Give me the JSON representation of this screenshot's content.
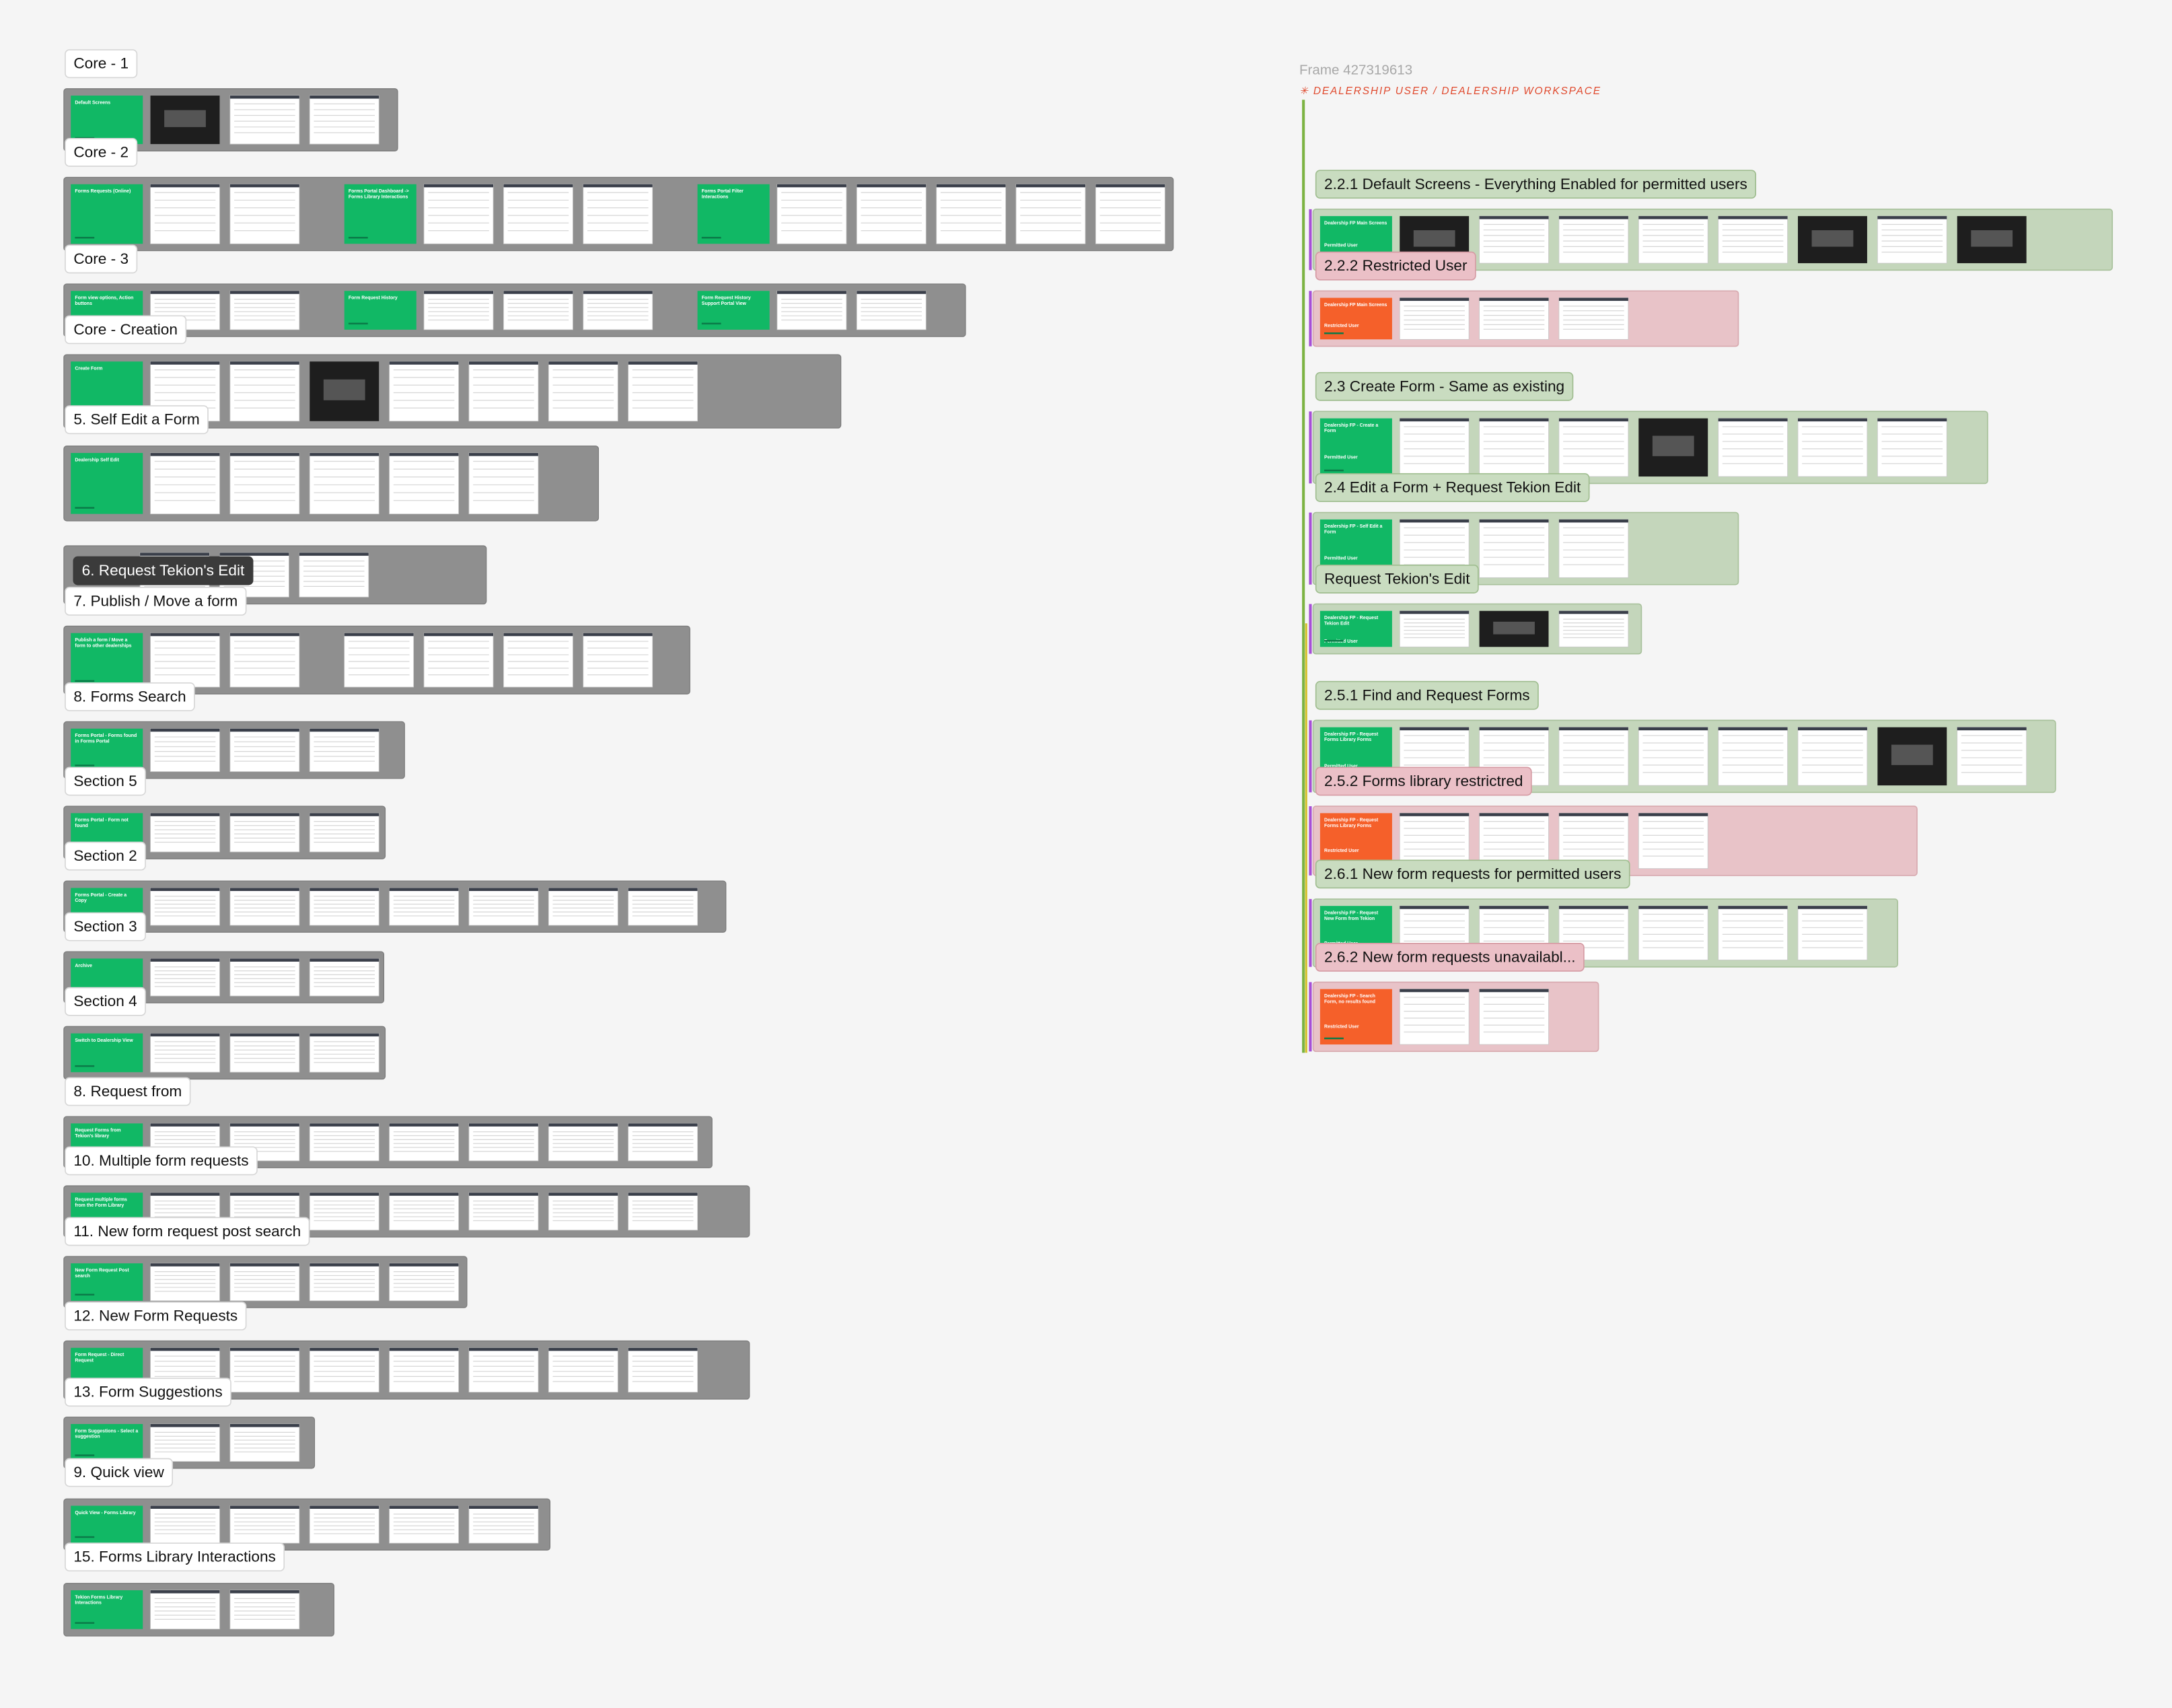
{
  "canvas": {
    "frame_label": "Frame 427319613",
    "frame_title": "✳ DEALERSHIP USER / DEALERSHIP WORKSPACE",
    "left_sections": [
      {
        "label": "Core - 1",
        "cover_titles": [
          "Default Screens"
        ]
      },
      {
        "label": "Core - 2",
        "cover_titles": [
          "Forms Requests (Online)",
          "Forms Portal Dashboard -> Forms Library Interactions",
          "Forms Portal Filter Interactions"
        ]
      },
      {
        "label": "Core - 3",
        "cover_titles": [
          "Form view options, Action buttons",
          "Form Request History",
          "Form Request History Support Portal View"
        ]
      },
      {
        "label": "Core - Creation",
        "cover_titles": [
          "Create Form"
        ]
      },
      {
        "label": "5. Self Edit a Form",
        "cover_titles": [
          "Dealership Self Edit"
        ]
      },
      {
        "label": "6. Request Tekion's Edit",
        "cover_titles": []
      },
      {
        "label": "7. Publish / Move a form",
        "cover_titles": [
          "Publish a form / Move a form to other dealerships"
        ]
      },
      {
        "label": "8. Forms Search",
        "cover_titles": [
          "Forms Portal - Forms found in Forms Portal"
        ]
      },
      {
        "label": "Section 5",
        "cover_titles": [
          "Forms Portal - Form not found"
        ]
      },
      {
        "label": "Section 2",
        "cover_titles": [
          "Forms Portal - Create a Copy"
        ]
      },
      {
        "label": "Section 3",
        "cover_titles": [
          "Archive"
        ]
      },
      {
        "label": "Section 4",
        "cover_titles": [
          "Switch to Dealership View"
        ]
      },
      {
        "label": "8. Request from",
        "cover_titles": [
          "Request Forms from Tekion's library"
        ]
      },
      {
        "label": "10. Multiple form requests",
        "cover_titles": [
          "Request multiple forms from the Form Library"
        ]
      },
      {
        "label": "11. New form request post search",
        "cover_titles": [
          "New Form Request Post search"
        ]
      },
      {
        "label": "12. New Form Requests",
        "cover_titles": [
          "Form Request - Direct Request"
        ]
      },
      {
        "label": "13. Form Suggestions",
        "cover_titles": [
          "Form Suggestions - Select a suggestion"
        ]
      },
      {
        "label": "9. Quick view",
        "cover_titles": [
          "Quick View - Forms Library"
        ]
      },
      {
        "label": "15. Forms Library Interactions",
        "cover_titles": [
          "Tekion Forms Library Interactions"
        ]
      }
    ],
    "right_sections": [
      {
        "label": "2.2.1 Default Screens - Everything Enabled for permitted users",
        "cover_title": "Dealership FP Main Screens",
        "cover_subtitle": "Permitted User"
      },
      {
        "label": "2.2.2 Restricted User",
        "cover_title": "Dealership FP Main Screens",
        "cover_subtitle": "Restricted User"
      },
      {
        "label": "2.3 Create Form - Same as existing",
        "cover_title": "Dealership FP - Create a Form",
        "cover_subtitle": "Permitted User"
      },
      {
        "label": "2.4 Edit a Form + Request Tekion Edit",
        "cover_title": "Dealership FP - Self Edit a Form",
        "cover_subtitle": "Permitted User"
      },
      {
        "label": "Request Tekion's Edit",
        "cover_title": "Dealership FP - Request Tekion Edit",
        "cover_subtitle": "Permitted User"
      },
      {
        "label": "2.5.1 Find and Request Forms",
        "cover_title": "Dealership FP - Request Forms Library Forms",
        "cover_subtitle": "Permitted User"
      },
      {
        "label": "2.5.2 Forms library restrictred",
        "cover_title": "Dealership FP - Request Forms Library Forms",
        "cover_subtitle": "Restricted User"
      },
      {
        "label": "2.6.1 New form requests for permitted users",
        "cover_title": "Dealership FP - Request New Form from Tekion",
        "cover_subtitle": "Permitted User"
      },
      {
        "label": "2.6.2 New form requests unavailabl...",
        "cover_title": "Dealership FP - Search Form, no results found",
        "cover_subtitle": "Restricted User"
      }
    ]
  }
}
